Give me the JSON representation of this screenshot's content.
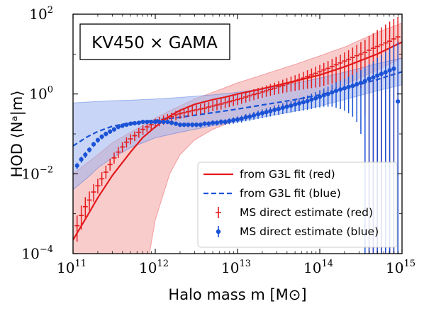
{
  "chart_data": {
    "type": "line",
    "title": "KV450 × GAMA",
    "xlabel": "Halo mass m [M⊙]",
    "ylabel": "HOD ⟨Nᵃ|m⟩",
    "xscale": "log",
    "yscale": "log",
    "xlim": [
      100000000000.0,
      1000000000000000.0
    ],
    "ylim": [
      0.0001,
      100
    ],
    "grid": false,
    "legend_position": "lower-right",
    "x_ticks": [
      {
        "base": "10",
        "exp": "11"
      },
      {
        "base": "10",
        "exp": "12"
      },
      {
        "base": "10",
        "exp": "13"
      },
      {
        "base": "10",
        "exp": "14"
      },
      {
        "base": "10",
        "exp": "15"
      }
    ],
    "y_ticks": [
      {
        "base": "10",
        "exp": "−4"
      },
      {
        "base": "10",
        "exp": "−2"
      },
      {
        "base": "10",
        "exp": "0"
      },
      {
        "base": "10",
        "exp": "2"
      }
    ],
    "colors": {
      "red": "#e31a1c",
      "red_band": "#f4a3a3",
      "blue": "#1a52d6",
      "blue_band": "#9db2ee",
      "overlap": "#c39bc9"
    },
    "series": [
      {
        "name": "from G3L fit (red)",
        "kind": "fit",
        "style": "solid",
        "color": "red",
        "x": [
          100000000000.0,
          150000000000.0,
          200000000000.0,
          300000000000.0,
          500000000000.0,
          700000000000.0,
          1000000000000.0,
          1500000000000.0,
          2000000000000.0,
          3000000000000.0,
          5000000000000.0,
          7000000000000.0,
          10000000000000.0,
          20000000000000.0,
          30000000000000.0,
          50000000000000.0,
          100000000000000.0,
          200000000000000.0,
          500000000000000.0,
          1000000000000000.0
        ],
        "y": [
          0.00022,
          0.0009,
          0.0025,
          0.009,
          0.035,
          0.08,
          0.15,
          0.28,
          0.39,
          0.55,
          0.72,
          0.83,
          1.0,
          1.35,
          1.65,
          2.1,
          3.0,
          4.8,
          10,
          20
        ]
      },
      {
        "name": "from G3L fit (blue)",
        "kind": "fit",
        "style": "dashed",
        "color": "blue",
        "x": [
          100000000000.0,
          150000000000.0,
          200000000000.0,
          300000000000.0,
          500000000000.0,
          1000000000000.0,
          2000000000000.0,
          5000000000000.0,
          10000000000000.0,
          20000000000000.0,
          50000000000000.0,
          100000000000000.0,
          200000000000000.0,
          500000000000000.0,
          1000000000000000.0
        ],
        "y": [
          0.05,
          0.085,
          0.115,
          0.155,
          0.19,
          0.22,
          0.26,
          0.34,
          0.42,
          0.53,
          0.72,
          0.95,
          1.35,
          2.3,
          3.6
        ]
      },
      {
        "name": "MS direct estimate (red)",
        "kind": "points",
        "marker": "cross",
        "color": "red",
        "x": [
          112000000000.0,
          126000000000.0,
          141000000000.0,
          158000000000.0,
          178000000000.0,
          200000000000.0,
          224000000000.0,
          251000000000.0,
          282000000000.0,
          316000000000.0,
          355000000000.0,
          398000000000.0,
          447000000000.0,
          501000000000.0,
          562000000000.0,
          631000000000.0,
          708000000000.0,
          794000000000.0,
          891000000000.0,
          1000000000000.0,
          1120000000000.0,
          1260000000000.0,
          1410000000000.0,
          1580000000000.0,
          1780000000000.0,
          2000000000000.0,
          2240000000000.0,
          2510000000000.0,
          2820000000000.0,
          3160000000000.0,
          3550000000000.0,
          3980000000000.0,
          4470000000000.0,
          5010000000000.0,
          5620000000000.0,
          6310000000000.0,
          7080000000000.0,
          7940000000000.0,
          8910000000000.0,
          10000000000000.0,
          11200000000000.0,
          12600000000000.0,
          14100000000000.0,
          15800000000000.0,
          17800000000000.0,
          20000000000000.0,
          22400000000000.0,
          25100000000000.0,
          28200000000000.0,
          31600000000000.0,
          35500000000000.0,
          39800000000000.0,
          44700000000000.0,
          50100000000000.0,
          56200000000000.0,
          63100000000000.0,
          70800000000000.0,
          79400000000000.0,
          89100000000000.0,
          100000000000000.0,
          112000000000000.0,
          126000000000000.0,
          141000000000000.0,
          158000000000000.0,
          178000000000000.0,
          200000000000000.0,
          224000000000000.0,
          251000000000000.0,
          282000000000000.0,
          316000000000000.0,
          355000000000000.0,
          398000000000000.0,
          447000000000000.0,
          501000000000000.0,
          562000000000000.0,
          631000000000000.0,
          708000000000000.0,
          794000000000000.0,
          891000000000000.0
        ],
        "y": [
          0.0005,
          0.0009,
          0.0015,
          0.0022,
          0.0035,
          0.005,
          0.0075,
          0.011,
          0.017,
          0.025,
          0.035,
          0.047,
          0.062,
          0.075,
          0.09,
          0.11,
          0.13,
          0.15,
          0.17,
          0.19,
          0.21,
          0.23,
          0.25,
          0.27,
          0.3,
          0.32,
          0.34,
          0.36,
          0.38,
          0.4,
          0.42,
          0.44,
          0.47,
          0.5,
          0.53,
          0.56,
          0.6,
          0.64,
          0.68,
          0.73,
          0.78,
          0.84,
          0.9,
          0.97,
          1.04,
          1.12,
          1.2,
          1.3,
          1.4,
          1.52,
          1.65,
          1.8,
          1.95,
          2.1,
          2.3,
          2.5,
          2.75,
          3.0,
          3.3,
          3.6,
          4.0,
          4.4,
          4.9,
          5.4,
          6.0,
          6.7,
          7.4,
          8.2,
          9.1,
          10,
          11,
          12.5,
          14,
          15.5,
          17,
          19,
          21,
          24,
          27
        ],
        "err_low": [
          0.0002,
          0.0004,
          0.0008,
          0.0012,
          0.002,
          0.0032,
          0.005,
          0.0075,
          0.012,
          0.018,
          0.025,
          0.034,
          0.045,
          0.055,
          0.066,
          0.08,
          0.095,
          0.11,
          0.125,
          0.14,
          0.155,
          0.17,
          0.185,
          0.2,
          0.22,
          0.24,
          0.25,
          0.27,
          0.28,
          0.3,
          0.31,
          0.33,
          0.35,
          0.37,
          0.39,
          0.41,
          0.44,
          0.47,
          0.5,
          0.53,
          0.57,
          0.61,
          0.65,
          0.7,
          0.75,
          0.8,
          0.85,
          0.9,
          0.95,
          1.0,
          1.05,
          1.1,
          1.15,
          1.2,
          1.25,
          1.3,
          1.35,
          1.4,
          1.45,
          1.5,
          1.6,
          1.7,
          1.8,
          1.9,
          2.0,
          2.0,
          1.9,
          1.8,
          1.6,
          1.4,
          0.3,
          0.0001,
          0.0001,
          0.0001,
          0.0001,
          0.0001,
          0.0001,
          0.0001,
          0.0001
        ],
        "err_high": [
          0.0009,
          0.0016,
          0.0026,
          0.0036,
          0.0055,
          0.0075,
          0.011,
          0.016,
          0.024,
          0.034,
          0.047,
          0.062,
          0.082,
          0.098,
          0.115,
          0.14,
          0.165,
          0.19,
          0.215,
          0.24,
          0.265,
          0.29,
          0.315,
          0.34,
          0.38,
          0.41,
          0.44,
          0.47,
          0.5,
          0.53,
          0.56,
          0.59,
          0.63,
          0.67,
          0.71,
          0.76,
          0.81,
          0.87,
          0.92,
          0.99,
          1.06,
          1.14,
          1.22,
          1.32,
          1.42,
          1.52,
          1.64,
          1.78,
          1.92,
          2.1,
          2.28,
          2.5,
          2.72,
          2.95,
          3.25,
          3.55,
          3.95,
          4.35,
          4.85,
          5.35,
          6.0,
          6.7,
          7.6,
          8.5,
          9.6,
          11,
          12.5,
          14.5,
          17,
          20,
          23,
          28,
          33,
          40,
          47,
          55,
          65,
          75,
          85
        ]
      },
      {
        "name": "MS direct estimate (blue)",
        "kind": "points",
        "marker": "dot",
        "color": "blue",
        "x": [
          112000000000.0,
          126000000000.0,
          141000000000.0,
          158000000000.0,
          178000000000.0,
          200000000000.0,
          224000000000.0,
          251000000000.0,
          282000000000.0,
          316000000000.0,
          355000000000.0,
          398000000000.0,
          447000000000.0,
          501000000000.0,
          562000000000.0,
          631000000000.0,
          708000000000.0,
          794000000000.0,
          891000000000.0,
          1000000000000.0,
          1120000000000.0,
          1260000000000.0,
          1410000000000.0,
          1580000000000.0,
          1780000000000.0,
          2000000000000.0,
          2240000000000.0,
          2510000000000.0,
          2820000000000.0,
          3160000000000.0,
          3550000000000.0,
          3980000000000.0,
          4470000000000.0,
          5010000000000.0,
          5620000000000.0,
          6310000000000.0,
          7080000000000.0,
          7940000000000.0,
          8910000000000.0,
          10000000000000.0,
          11200000000000.0,
          12600000000000.0,
          14100000000000.0,
          15800000000000.0,
          17800000000000.0,
          20000000000000.0,
          22400000000000.0,
          25100000000000.0,
          28200000000000.0,
          31600000000000.0,
          35500000000000.0,
          39800000000000.0,
          44700000000000.0,
          50100000000000.0,
          56200000000000.0,
          63100000000000.0,
          70800000000000.0,
          79400000000000.0,
          89100000000000.0,
          100000000000000.0,
          112000000000000.0,
          126000000000000.0,
          141000000000000.0,
          158000000000000.0,
          178000000000000.0,
          200000000000000.0,
          224000000000000.0,
          251000000000000.0,
          282000000000000.0,
          316000000000000.0,
          355000000000000.0,
          398000000000000.0,
          447000000000000.0,
          501000000000000.0,
          562000000000000.0,
          631000000000000.0,
          708000000000000.0,
          794000000000000.0,
          891000000000000.0
        ],
        "y": [
          0.016,
          0.023,
          0.03,
          0.04,
          0.055,
          0.07,
          0.085,
          0.1,
          0.115,
          0.13,
          0.15,
          0.16,
          0.17,
          0.18,
          0.185,
          0.19,
          0.2,
          0.2,
          0.2,
          0.2,
          0.2,
          0.2,
          0.2,
          0.19,
          0.18,
          0.17,
          0.17,
          0.17,
          0.17,
          0.17,
          0.17,
          0.18,
          0.18,
          0.19,
          0.19,
          0.2,
          0.2,
          0.21,
          0.22,
          0.23,
          0.24,
          0.26,
          0.27,
          0.29,
          0.31,
          0.33,
          0.35,
          0.37,
          0.4,
          0.42,
          0.45,
          0.48,
          0.51,
          0.55,
          0.58,
          0.62,
          0.66,
          0.72,
          0.78,
          0.85,
          0.93,
          1.0,
          1.1,
          1.2,
          1.3,
          1.4,
          1.5,
          1.6,
          1.75,
          1.9,
          2.1,
          2.4,
          2.6,
          2.9,
          3.2,
          3.5,
          3.9,
          4.3,
          0.65
        ],
        "err_low": [
          0.013,
          0.019,
          0.025,
          0.034,
          0.047,
          0.06,
          0.073,
          0.086,
          0.1,
          0.113,
          0.13,
          0.14,
          0.15,
          0.158,
          0.163,
          0.167,
          0.175,
          0.175,
          0.175,
          0.175,
          0.175,
          0.175,
          0.175,
          0.166,
          0.157,
          0.148,
          0.148,
          0.148,
          0.147,
          0.147,
          0.146,
          0.155,
          0.154,
          0.162,
          0.161,
          0.168,
          0.167,
          0.174,
          0.18,
          0.187,
          0.193,
          0.207,
          0.213,
          0.225,
          0.238,
          0.25,
          0.262,
          0.273,
          0.29,
          0.3,
          0.315,
          0.33,
          0.345,
          0.36,
          0.37,
          0.385,
          0.4,
          0.42,
          0.44,
          0.46,
          0.48,
          0.48,
          0.48,
          0.45,
          0.42,
          0.38,
          0.33,
          0.27,
          0.2,
          0.1,
          0.0001,
          0.0001,
          0.0001,
          0.0001,
          0.0001,
          0.0001,
          0.0001,
          0.0001,
          0.0001
        ],
        "err_high": [
          0.019,
          0.027,
          0.035,
          0.046,
          0.063,
          0.08,
          0.097,
          0.114,
          0.13,
          0.147,
          0.17,
          0.18,
          0.19,
          0.202,
          0.207,
          0.213,
          0.225,
          0.225,
          0.225,
          0.225,
          0.225,
          0.225,
          0.225,
          0.214,
          0.203,
          0.192,
          0.192,
          0.192,
          0.193,
          0.193,
          0.194,
          0.205,
          0.206,
          0.218,
          0.219,
          0.232,
          0.233,
          0.246,
          0.26,
          0.273,
          0.287,
          0.313,
          0.327,
          0.355,
          0.382,
          0.41,
          0.438,
          0.467,
          0.51,
          0.54,
          0.585,
          0.63,
          0.675,
          0.74,
          0.79,
          0.855,
          0.92,
          1.02,
          1.12,
          1.24,
          1.38,
          1.52,
          1.72,
          1.95,
          2.18,
          2.42,
          2.7,
          3.0,
          3.45,
          3.95,
          4.6,
          5.6,
          6.6,
          8.0,
          9.5,
          11.5,
          14,
          17,
          20
        ]
      }
    ],
    "bands": [
      {
        "color": "red",
        "x": [
          100000000000.0,
          200000000000.0,
          300000000000.0,
          500000000000.0,
          700000000000.0,
          850000000000.0,
          1000000000000.0,
          1500000000000.0,
          2000000000000.0,
          3000000000000.0,
          5000000000000.0,
          10000000000000.0,
          20000000000000.0,
          50000000000000.0,
          100000000000000.0,
          200000000000000.0,
          500000000000000.0,
          1000000000000000.0
        ],
        "low": [
          0.0001,
          0.0001,
          0.0001,
          0.0001,
          0.0001,
          0.0001,
          0.0007,
          0.01,
          0.03,
          0.07,
          0.13,
          0.23,
          0.35,
          0.62,
          1.0,
          1.7,
          4.0,
          8.0
        ],
        "high": [
          0.01,
          0.03,
          0.06,
          0.11,
          0.16,
          0.2,
          0.25,
          0.38,
          0.5,
          0.75,
          1.1,
          1.9,
          3.0,
          5.5,
          9.0,
          15,
          35,
          60
        ]
      },
      {
        "color": "blue",
        "x": [
          100000000000.0,
          150000000000.0,
          200000000000.0,
          300000000000.0,
          500000000000.0,
          1000000000000.0,
          2000000000000.0,
          5000000000000.0,
          10000000000000.0,
          20000000000000.0,
          50000000000000.0,
          100000000000000.0,
          200000000000000.0,
          500000000000000.0,
          1000000000000000.0
        ],
        "low": [
          0.004,
          0.008,
          0.014,
          0.025,
          0.045,
          0.08,
          0.11,
          0.16,
          0.2,
          0.26,
          0.37,
          0.5,
          0.72,
          1.2,
          1.7
        ],
        "high": [
          0.6,
          0.63,
          0.65,
          0.68,
          0.7,
          0.75,
          0.82,
          0.95,
          1.1,
          1.35,
          1.85,
          2.5,
          3.5,
          5.8,
          8.0
        ]
      }
    ]
  },
  "legend": {
    "items": [
      {
        "label": "from G3L fit (red)"
      },
      {
        "label": "from G3L fit (blue)"
      },
      {
        "label": "MS direct estimate (red)"
      },
      {
        "label": "MS direct estimate (blue)"
      }
    ]
  }
}
